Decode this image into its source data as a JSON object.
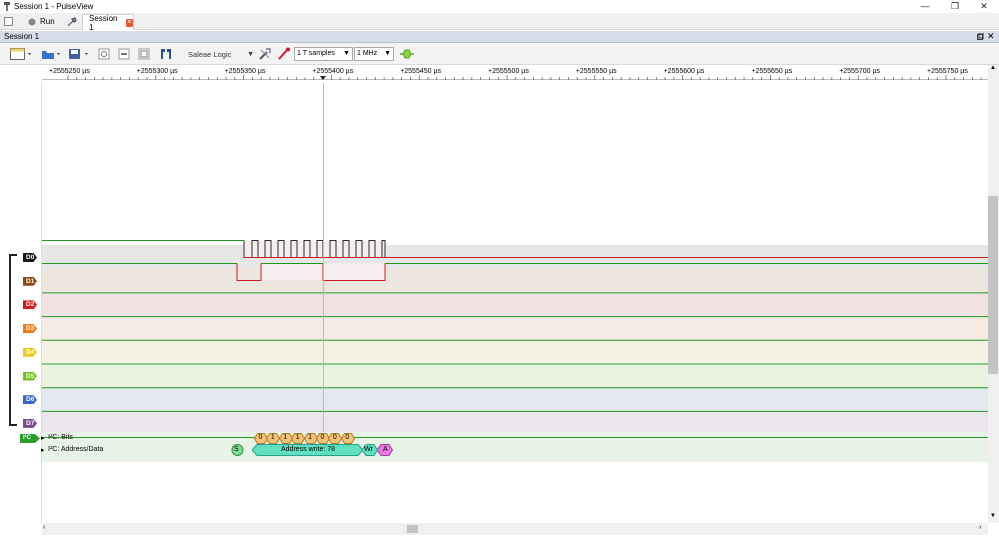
{
  "window": {
    "title": "Session 1 - PulseView",
    "minimize": "—",
    "restore": "❐",
    "close": "✕"
  },
  "tabs": {
    "run_label": "Run",
    "session_tab": "Session 1",
    "close_glyph": "×"
  },
  "session": {
    "title": "Session 1"
  },
  "toolbar": {
    "device": "Saleae Logic",
    "samples": "1 T samples",
    "samplerate": "1 MHz"
  },
  "ruler": {
    "ticks": [
      "+2555250 µs",
      "+2555300 µs",
      "+2555350 µs",
      "+2555400 µs",
      "+2555450 µs",
      "+2555500 µs",
      "+2555550 µs",
      "+2555600 µs",
      "+2555650 µs",
      "+2555700 µs",
      "+2555750 µs"
    ]
  },
  "channels": [
    {
      "label": "D0",
      "color": "#1a1a1a"
    },
    {
      "label": "D1",
      "color": "#8b4a14"
    },
    {
      "label": "D2",
      "color": "#d21b1b"
    },
    {
      "label": "D3",
      "color": "#ef7b1c"
    },
    {
      "label": "D4",
      "color": "#e6cc1e"
    },
    {
      "label": "D5",
      "color": "#74c21e"
    },
    {
      "label": "D6",
      "color": "#3865c8"
    },
    {
      "label": "D7",
      "color": "#7b4b8c"
    }
  ],
  "decoder": {
    "badge": "I²C",
    "row_bits": "I²C: Bits",
    "row_addr": "I²C: Address/Data",
    "bits": [
      "0",
      "1",
      "1",
      "1",
      "1",
      "0",
      "0",
      "0"
    ],
    "start": "S",
    "address": "Address write: 78",
    "wr": "Wr",
    "ack": "A"
  },
  "colors": {
    "high": "#1f9a1f",
    "low": "#c81e1e",
    "bit_fill": "#f4c37a",
    "addr_fill": "#60e0c0",
    "ack_fill": "#e879e0",
    "start_fill": "#7ddc8e"
  }
}
